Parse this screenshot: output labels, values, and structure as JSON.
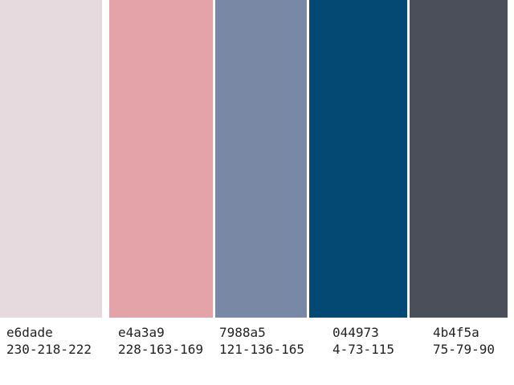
{
  "swatches": [
    {
      "color": "#e6dade",
      "hex": "e6dade",
      "rgb": "230-218-222"
    },
    {
      "color": "#e4a3a9",
      "hex": "e4a3a9",
      "rgb": "228-163-169"
    },
    {
      "color": "#7988a5",
      "hex": "7988a5",
      "rgb": "121-136-165"
    },
    {
      "color": "#044973",
      "hex": "044973",
      "rgb": "4-73-115"
    },
    {
      "color": "#4b4f5a",
      "hex": "4b4f5a",
      "rgb": "75-79-90"
    }
  ]
}
